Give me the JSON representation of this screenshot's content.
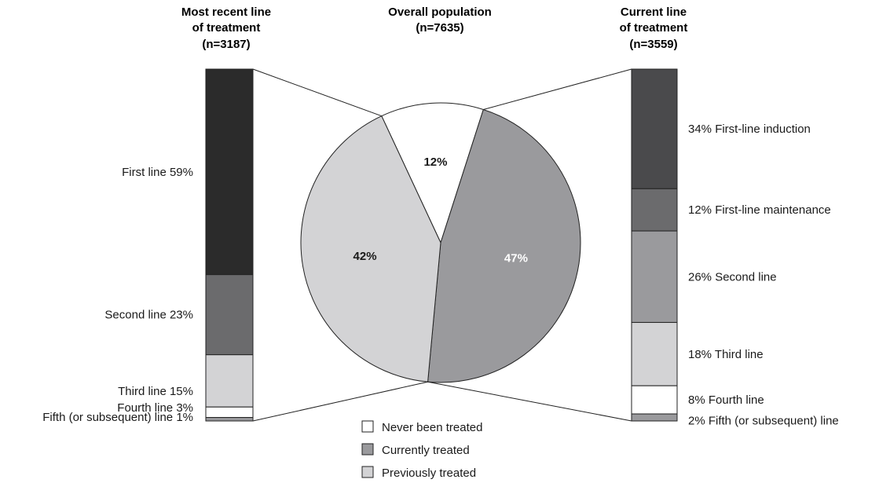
{
  "chart_data": {
    "type": "pie",
    "colors": {
      "never": "#ffffff",
      "currently": "#9a9a9d",
      "previously": "#d3d3d5",
      "stroke": "#222222"
    },
    "pie": {
      "title_line1": "Overall population",
      "title_line2": "(n=7635)",
      "slices": [
        {
          "key": "never",
          "label": "Never been treated",
          "value": 12,
          "text": "12%"
        },
        {
          "key": "currently",
          "label": "Currently treated",
          "value": 47,
          "text": "47%"
        },
        {
          "key": "previously",
          "label": "Previously treated",
          "value": 42,
          "text": "42%"
        }
      ]
    },
    "left_bar": {
      "title_line1": "Most recent line",
      "title_line2": "of treatment",
      "title_line3": "(n=3187)",
      "segments": [
        {
          "label": "First line 59%",
          "value": 59,
          "color": "#2b2b2b"
        },
        {
          "label": "Second line 23%",
          "value": 23,
          "color": "#6b6b6d"
        },
        {
          "label": "Third line 15%",
          "value": 15,
          "color": "#d3d3d5"
        },
        {
          "label": "Fourth line 3%",
          "value": 3,
          "color": "#ffffff"
        },
        {
          "label": "Fifth (or subsequent) line 1%",
          "value": 1,
          "color": "#9a9a9d"
        }
      ]
    },
    "right_bar": {
      "title_line1": "Current line",
      "title_line2": "of treatment",
      "title_line3": "(n=3559)",
      "segments": [
        {
          "label": "34% First-line induction",
          "value": 34,
          "color": "#4a4a4c"
        },
        {
          "label": "12% First-line maintenance",
          "value": 12,
          "color": "#6b6b6d"
        },
        {
          "label": "26% Second line",
          "value": 26,
          "color": "#9a9a9d"
        },
        {
          "label": "18% Third line",
          "value": 18,
          "color": "#d3d3d5"
        },
        {
          "label": "8% Fourth line",
          "value": 8,
          "color": "#ffffff"
        },
        {
          "label": "2% Fifth (or subsequent) line",
          "value": 2,
          "color": "#9a9a9d"
        }
      ]
    },
    "legend": [
      {
        "key": "never",
        "label": "Never been treated"
      },
      {
        "key": "currently",
        "label": "Currently treated"
      },
      {
        "key": "previously",
        "label": "Previously treated"
      }
    ]
  }
}
